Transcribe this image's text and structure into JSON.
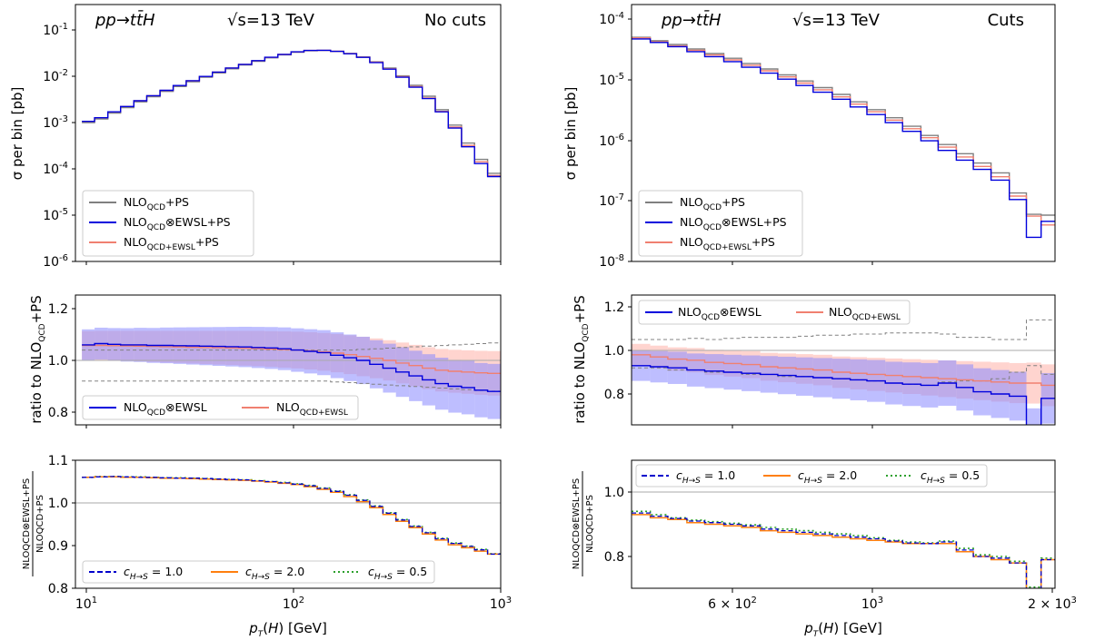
{
  "panels": {
    "left_top": {
      "process": "pp→tt̄H",
      "energy": "√s=13 TeV",
      "note": "No cuts",
      "ylabel": "σ per bin [pb]",
      "yticks": [
        {
          "e": "-1"
        },
        {
          "e": "-2"
        },
        {
          "e": "-3"
        },
        {
          "e": "-4"
        },
        {
          "e": "-5"
        },
        {
          "e": "-6"
        }
      ],
      "legend": [
        {
          "main": "NLO",
          "sub": "QCD",
          "tail": "+PS"
        },
        {
          "main": "NLO",
          "sub": "QCD",
          "tail": "⊗EWSL+PS"
        },
        {
          "main": "NLO",
          "sub": "QCD+EWSL",
          "tail": "+PS"
        }
      ]
    },
    "right_top": {
      "process": "pp→tt̄H",
      "energy": "√s=13 TeV",
      "note": "Cuts",
      "ylabel": "σ per bin [pb]",
      "yticks": [
        {
          "e": "-4"
        },
        {
          "e": "-5"
        },
        {
          "e": "-6"
        },
        {
          "e": "-7"
        },
        {
          "e": "-8"
        }
      ],
      "legend": [
        {
          "main": "NLO",
          "sub": "QCD",
          "tail": "+PS"
        },
        {
          "main": "NLO",
          "sub": "QCD",
          "tail": "⊗EWSL+PS"
        },
        {
          "main": "NLO",
          "sub": "QCD+EWSL",
          "tail": "+PS"
        }
      ]
    },
    "left_mid": {
      "ylabel": {
        "main": "ratio to NLO",
        "sub": "QCD",
        "tail": "+PS"
      },
      "yticks": [
        "1.2",
        "1.0",
        "0.8"
      ],
      "legend": [
        {
          "main": "NLO",
          "sub": "QCD",
          "tail": "⊗EWSL"
        },
        {
          "main": "NLO",
          "sub": "QCD+EWSL",
          "tail": ""
        }
      ]
    },
    "right_mid": {
      "ylabel": {
        "main": "ratio to NLO",
        "sub": "QCD",
        "tail": "+PS"
      },
      "yticks": [
        "1.2",
        "1.0",
        "0.8"
      ],
      "legend": [
        {
          "main": "NLO",
          "sub": "QCD",
          "tail": "⊗EWSL"
        },
        {
          "main": "NLO",
          "sub": "QCD+EWSL",
          "tail": ""
        }
      ]
    },
    "left_bot": {
      "ylabel_num": "NLOQCD⊗EWSL+PS",
      "ylabel_den": "NLOQCD+PS",
      "yticks": [
        "1.1",
        "1.0",
        "0.9",
        "0.8"
      ],
      "xticks": [
        {
          "b": "10",
          "e": "1"
        },
        {
          "b": "10",
          "e": "2"
        },
        {
          "b": "10",
          "e": "3"
        }
      ],
      "xlabel": "p_T(H) [GeV]",
      "legend": [
        "c_{H→S} = 1.0",
        "c_{H→S} = 2.0",
        "c_{H→S} = 0.5"
      ]
    },
    "right_bot": {
      "ylabel_num": "NLOQCD⊗EWSL+PS",
      "ylabel_den": "NLOQCD+PS",
      "yticks": [
        "1.0",
        "0.8"
      ],
      "xticks": [
        {
          "b": "6 × 10",
          "e": "2"
        },
        {
          "b": "10",
          "e": "3"
        },
        {
          "b": "2 × 10",
          "e": "3"
        }
      ],
      "xlabel": "p_T(H) [GeV]",
      "legend": [
        "c_{H→S} = 1.0",
        "c_{H→S} = 2.0",
        "c_{H→S} = 0.5"
      ]
    }
  },
  "colors": {
    "nlo_qcd": "#808080",
    "ewsl": "#0000dd",
    "qcd_ewsl": "#f08070",
    "band_blue": "#8888ff",
    "band_red": "#ffb0a8",
    "c1": "#0000cc",
    "c2": "#ff7f0e",
    "c05": "#2ca02c"
  },
  "chart_data": [
    {
      "type": "line",
      "title": "No cuts",
      "xlabel": "p_T(H) [GeV]",
      "ylabel": "σ per bin [pb]",
      "xscale": "log",
      "yscale": "log",
      "xlim": [
        10,
        1000
      ],
      "ylim": [
        1e-06,
        0.2
      ],
      "x_edges": [
        10,
        11.5,
        13.3,
        15.3,
        17.7,
        20.4,
        23.6,
        27.3,
        31.5,
        36.4,
        42,
        48.5,
        56,
        64.7,
        74.7,
        86.3,
        99.7,
        115,
        133,
        154,
        178,
        205,
        237,
        274,
        316,
        365,
        422,
        487,
        562,
        650,
        750,
        866,
        1000
      ],
      "series": [
        {
          "name": "NLO_QCD+PS",
          "values": [
            0.001,
            0.0012,
            0.0016,
            0.0021,
            0.0028,
            0.0036,
            0.0047,
            0.006,
            0.0076,
            0.0095,
            0.0118,
            0.0145,
            0.0175,
            0.021,
            0.025,
            0.029,
            0.033,
            0.0355,
            0.036,
            0.0345,
            0.031,
            0.0262,
            0.0205,
            0.015,
            0.0102,
            0.0064,
            0.0037,
            0.0019,
            0.00088,
            0.00036,
            0.00016,
            8e-05
          ]
        },
        {
          "name": "NLO_QCD⊗EWSL+PS",
          "values": [
            0.00106,
            0.00127,
            0.0017,
            0.00222,
            0.00296,
            0.0038,
            0.00496,
            0.00632,
            0.008,
            0.0099,
            0.0123,
            0.0151,
            0.0181,
            0.0217,
            0.0257,
            0.0297,
            0.0337,
            0.0361,
            0.0364,
            0.0345,
            0.0307,
            0.0256,
            0.0198,
            0.0142,
            0.0095,
            0.0058,
            0.0033,
            0.0017,
            0.00076,
            0.0003,
            0.00013,
            6.8e-05
          ]
        },
        {
          "name": "NLO_QCD+EWSL+PS",
          "values": [
            0.00106,
            0.00127,
            0.0017,
            0.00222,
            0.00295,
            0.0038,
            0.00495,
            0.0063,
            0.00798,
            0.0099,
            0.0123,
            0.0151,
            0.0181,
            0.0216,
            0.0256,
            0.0296,
            0.0336,
            0.036,
            0.0363,
            0.0346,
            0.0309,
            0.0259,
            0.0201,
            0.0145,
            0.0098,
            0.006,
            0.0034,
            0.00174,
            0.0008,
            0.00032,
            0.000142,
            7.2e-05
          ]
        }
      ]
    },
    {
      "type": "line",
      "title": "Cuts",
      "xlabel": "p_T(H) [GeV]",
      "ylabel": "σ per bin [pb]",
      "xscale": "log",
      "yscale": "log",
      "xlim": [
        420,
        2000
      ],
      "ylim": [
        1e-08,
        0.0002
      ],
      "x_edges": [
        420,
        450,
        480,
        515,
        550,
        590,
        630,
        675,
        720,
        770,
        820,
        880,
        940,
        1000,
        1070,
        1140,
        1220,
        1300,
        1390,
        1480,
        1580,
        1690,
        1800,
        1900,
        2000
      ],
      "series": [
        {
          "name": "NLO_QCD+PS",
          "values": [
            5e-05,
            4.4e-05,
            3.8e-05,
            3.2e-05,
            2.7e-05,
            2.25e-05,
            1.85e-05,
            1.5e-05,
            1.2e-05,
            9.5e-06,
            7.4e-06,
            5.7e-06,
            4.3e-06,
            3.2e-06,
            2.35e-06,
            1.7e-06,
            1.2e-06,
            8.5e-07,
            6e-07,
            4.2e-07,
            2.9e-07,
            1.35e-07,
            6e-08,
            5.8e-08
          ]
        },
        {
          "name": "NLO_QCD⊗EWSL+PS",
          "values": [
            4.7e-05,
            4.1e-05,
            3.5e-05,
            2.9e-05,
            2.4e-05,
            1.98e-05,
            1.6e-05,
            1.28e-05,
            1.02e-05,
            8e-06,
            6.2e-06,
            4.75e-06,
            3.55e-06,
            2.65e-06,
            1.95e-06,
            1.4e-06,
            9.8e-07,
            6.8e-07,
            4.7e-07,
            3.3e-07,
            2.2e-07,
            1.05e-07,
            2.5e-08,
            4.6e-08
          ]
        },
        {
          "name": "NLO_QCD+EWSL+PS",
          "values": [
            4.9e-05,
            4.2e-05,
            3.6e-05,
            3.05e-05,
            2.55e-05,
            2.12e-05,
            1.73e-05,
            1.4e-05,
            1.11e-05,
            8.8e-06,
            6.8e-06,
            5.2e-06,
            3.95e-06,
            2.95e-06,
            2.15e-06,
            1.55e-06,
            1.1e-06,
            7.7e-07,
            5.3e-07,
            3.7e-07,
            2.5e-07,
            1.2e-07,
            5.6e-08,
            4e-08
          ]
        }
      ]
    },
    {
      "type": "line",
      "ylabel": "ratio to NLO_QCD+PS",
      "xscale": "log",
      "xlim": [
        10,
        1000
      ],
      "ylim": [
        0.75,
        1.25
      ],
      "series": [
        {
          "name": "NLO_QCD⊗EWSL",
          "values": [
            1.06,
            1.065,
            1.062,
            1.06,
            1.06,
            1.058,
            1.058,
            1.057,
            1.056,
            1.055,
            1.054,
            1.053,
            1.052,
            1.05,
            1.048,
            1.045,
            1.04,
            1.035,
            1.03,
            1.02,
            1.01,
            1.0,
            0.985,
            0.97,
            0.955,
            0.94,
            0.925,
            0.91,
            0.9,
            0.895,
            0.885,
            0.88
          ]
        },
        {
          "name": "NLO_QCD+EWSL",
          "values": [
            1.058,
            1.058,
            1.057,
            1.056,
            1.055,
            1.054,
            1.053,
            1.052,
            1.051,
            1.05,
            1.049,
            1.048,
            1.047,
            1.046,
            1.044,
            1.042,
            1.04,
            1.037,
            1.033,
            1.028,
            1.022,
            1.015,
            1.008,
            1.0,
            0.99,
            0.98,
            0.97,
            0.962,
            0.958,
            0.955,
            0.952,
            0.95
          ]
        }
      ]
    },
    {
      "type": "line",
      "ylabel": "ratio to NLO_QCD+PS",
      "xscale": "log",
      "xlim": [
        420,
        2000
      ],
      "ylim": [
        0.65,
        1.25
      ],
      "series": [
        {
          "name": "NLO_QCD⊗EWSL",
          "values": [
            0.93,
            0.925,
            0.92,
            0.91,
            0.905,
            0.9,
            0.895,
            0.89,
            0.885,
            0.88,
            0.875,
            0.87,
            0.865,
            0.86,
            0.85,
            0.845,
            0.84,
            0.85,
            0.83,
            0.81,
            0.8,
            0.79,
            0.62,
            0.78
          ]
        },
        {
          "name": "NLO_QCD+EWSL",
          "values": [
            0.98,
            0.97,
            0.96,
            0.955,
            0.945,
            0.94,
            0.935,
            0.925,
            0.92,
            0.915,
            0.91,
            0.9,
            0.895,
            0.89,
            0.885,
            0.88,
            0.875,
            0.87,
            0.865,
            0.86,
            0.855,
            0.85,
            0.85,
            0.84
          ]
        }
      ]
    },
    {
      "type": "line",
      "ylabel": "NLO_QCD⊗EWSL+PS / NLO_QCD+PS",
      "xscale": "log",
      "xlim": [
        10,
        1000
      ],
      "ylim": [
        0.8,
        1.1
      ],
      "series": [
        {
          "name": "c_H→S = 1.0",
          "values": [
            1.06,
            1.061,
            1.062,
            1.061,
            1.06,
            1.06,
            1.059,
            1.058,
            1.058,
            1.057,
            1.056,
            1.055,
            1.054,
            1.052,
            1.05,
            1.047,
            1.044,
            1.04,
            1.034,
            1.027,
            1.018,
            1.006,
            0.992,
            0.976,
            0.96,
            0.945,
            0.93,
            0.916,
            0.905,
            0.898,
            0.89,
            0.88
          ]
        },
        {
          "name": "c_H→S = 2.0",
          "values": [
            1.06,
            1.061,
            1.061,
            1.06,
            1.06,
            1.059,
            1.058,
            1.058,
            1.057,
            1.056,
            1.055,
            1.054,
            1.053,
            1.051,
            1.049,
            1.046,
            1.043,
            1.038,
            1.032,
            1.025,
            1.015,
            1.003,
            0.989,
            0.973,
            0.957,
            0.942,
            0.927,
            0.913,
            0.902,
            0.895,
            0.887,
            0.88
          ]
        },
        {
          "name": "c_H→S = 0.5",
          "values": [
            1.06,
            1.062,
            1.062,
            1.061,
            1.061,
            1.06,
            1.059,
            1.059,
            1.058,
            1.057,
            1.056,
            1.055,
            1.054,
            1.052,
            1.05,
            1.048,
            1.045,
            1.041,
            1.035,
            1.028,
            1.019,
            1.007,
            0.993,
            0.977,
            0.961,
            0.946,
            0.931,
            0.917,
            0.906,
            0.899,
            0.891,
            0.881
          ]
        }
      ]
    },
    {
      "type": "line",
      "ylabel": "NLO_QCD⊗EWSL+PS / NLO_QCD+PS",
      "xscale": "log",
      "xlim": [
        420,
        2000
      ],
      "ylim": [
        0.7,
        1.1
      ],
      "series": [
        {
          "name": "c_H→S = 1.0",
          "values": [
            0.935,
            0.925,
            0.918,
            0.91,
            0.905,
            0.9,
            0.895,
            0.885,
            0.88,
            0.875,
            0.87,
            0.865,
            0.86,
            0.855,
            0.848,
            0.842,
            0.84,
            0.845,
            0.82,
            0.8,
            0.795,
            0.78,
            0.7,
            0.79
          ]
        },
        {
          "name": "c_H→S = 2.0",
          "values": [
            0.93,
            0.92,
            0.915,
            0.905,
            0.9,
            0.895,
            0.89,
            0.88,
            0.875,
            0.87,
            0.865,
            0.86,
            0.855,
            0.85,
            0.845,
            0.84,
            0.84,
            0.84,
            0.815,
            0.8,
            0.79,
            0.78,
            0.7,
            0.79
          ]
        },
        {
          "name": "c_H→S = 0.5",
          "values": [
            0.94,
            0.93,
            0.92,
            0.913,
            0.908,
            0.903,
            0.898,
            0.89,
            0.885,
            0.88,
            0.875,
            0.87,
            0.865,
            0.858,
            0.85,
            0.845,
            0.842,
            0.848,
            0.825,
            0.805,
            0.8,
            0.785,
            0.705,
            0.795
          ]
        }
      ]
    }
  ]
}
